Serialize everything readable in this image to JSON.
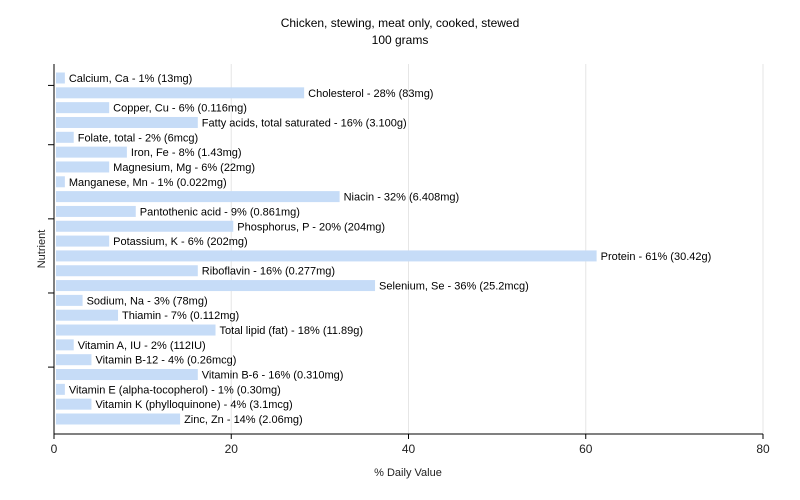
{
  "chart_data": {
    "type": "bar",
    "orientation": "horizontal",
    "title": "Chicken, stewing, meat only, cooked, stewed",
    "subtitle": "100 grams",
    "xlabel": "% Daily Value",
    "ylabel": "Nutrient",
    "xlim": [
      0,
      80
    ],
    "xticks": [
      0,
      20,
      40,
      60,
      80
    ],
    "grid": true,
    "bar_color": "#c6dcf7",
    "categories": [
      "Calcium, Ca",
      "Cholesterol",
      "Copper, Cu",
      "Fatty acids, total saturated",
      "Folate, total",
      "Iron, Fe",
      "Magnesium, Mg",
      "Manganese, Mn",
      "Niacin",
      "Pantothenic acid",
      "Phosphorus, P",
      "Potassium, K",
      "Protein",
      "Riboflavin",
      "Selenium, Se",
      "Sodium, Na",
      "Thiamin",
      "Total lipid (fat)",
      "Vitamin A, IU",
      "Vitamin B-12",
      "Vitamin B-6",
      "Vitamin E (alpha-tocopherol)",
      "Vitamin K (phylloquinone)",
      "Zinc, Zn"
    ],
    "values": [
      1,
      28,
      6,
      16,
      2,
      8,
      6,
      1,
      32,
      9,
      20,
      6,
      61,
      16,
      36,
      3,
      7,
      18,
      2,
      4,
      16,
      1,
      4,
      14
    ],
    "labels": [
      "Calcium, Ca - 1% (13mg)",
      "Cholesterol - 28% (83mg)",
      "Copper, Cu - 6% (0.116mg)",
      "Fatty acids, total saturated - 16% (3.100g)",
      "Folate, total - 2% (6mcg)",
      "Iron, Fe - 8% (1.43mg)",
      "Magnesium, Mg - 6% (22mg)",
      "Manganese, Mn - 1% (0.022mg)",
      "Niacin - 32% (6.408mg)",
      "Pantothenic acid - 9% (0.861mg)",
      "Phosphorus, P - 20% (204mg)",
      "Potassium, K - 6% (202mg)",
      "Protein - 61% (30.42g)",
      "Riboflavin - 16% (0.277mg)",
      "Selenium, Se - 36% (25.2mcg)",
      "Sodium, Na - 3% (78mg)",
      "Thiamin - 7% (0.112mg)",
      "Total lipid (fat) - 18% (11.89g)",
      "Vitamin A, IU - 2% (112IU)",
      "Vitamin B-12 - 4% (0.26mcg)",
      "Vitamin B-6 - 16% (0.310mg)",
      "Vitamin E (alpha-tocopherol) - 1% (0.30mg)",
      "Vitamin K (phylloquinone) - 4% (3.1mcg)",
      "Zinc, Zn - 14% (2.06mg)"
    ]
  }
}
